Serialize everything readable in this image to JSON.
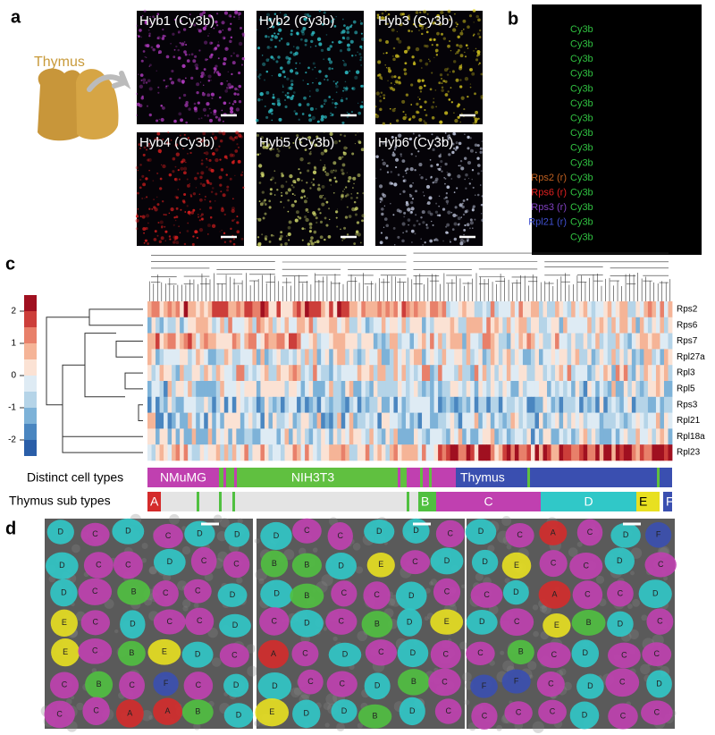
{
  "panel_labels": [
    "a",
    "b",
    "c",
    "d"
  ],
  "panel_a": {
    "organ": "Thymus",
    "images": [
      {
        "title": "Hyb1 (Cy3b)",
        "color": "#c040d0"
      },
      {
        "title": "Hyb2 (Cy3b)",
        "color": "#30c8d0"
      },
      {
        "title": "Hyb3 (Cy3b)",
        "color": "#e0d020"
      },
      {
        "title": "Hyb4 (Cy3b)",
        "color": "#e02020"
      },
      {
        "title": "Hyb5 (Cy3b)",
        "color": "#d8e070"
      },
      {
        "title": "Hyb6 (Cy3b)",
        "color": "#d0d8f0"
      }
    ]
  },
  "panel_b": {
    "channels": [
      "Cy3b",
      "Cy3b",
      "Cy3b",
      "Cy3b",
      "Cy3b",
      "Cy3b",
      "Cy3b",
      "Cy3b",
      "Cy3b",
      "Cy3b",
      "Cy3b",
      "Cy3b",
      "Cy3b",
      "Cy3b",
      "Cy3b"
    ],
    "channel_color": "#30c040",
    "probes": [
      {
        "label": "Rps2 (r)",
        "color": "#c06020"
      },
      {
        "label": "Rps6 (r)",
        "color": "#e02020"
      },
      {
        "label": "Rps3 (r)",
        "color": "#8040c0"
      },
      {
        "label": "Rpl21 (r)",
        "color": "#4050d0"
      }
    ]
  },
  "panel_c": {
    "colorbar_ticks": [
      2,
      1,
      0,
      -1,
      -2
    ],
    "genes": [
      "Rps2",
      "Rps6",
      "Rps7",
      "Rpl27a",
      "Rpl3",
      "Rpl5",
      "Rps3",
      "Rpl21",
      "Rpl18a",
      "Rpl23"
    ],
    "cell_type_track": {
      "label": "Distinct cell types",
      "segments": [
        {
          "label": "NMuMG",
          "color": "#c040b0"
        },
        {
          "label": "NIH3T3",
          "color": "#60c040"
        },
        {
          "label": "Thymus",
          "color": "#3a4fb0"
        }
      ]
    },
    "subtype_track": {
      "label": "Thymus sub types",
      "subtypes": [
        {
          "label": "A",
          "color": "#d42b2b"
        },
        {
          "label": "B",
          "color": "#50c040"
        },
        {
          "label": "C",
          "color": "#c040b0"
        },
        {
          "label": "D",
          "color": "#30c8c8"
        },
        {
          "label": "E",
          "color": "#e8e020"
        },
        {
          "label": "F",
          "color": "#3a4fb0"
        }
      ]
    }
  },
  "panel_d": {
    "images": [
      {
        "cells": [
          "D",
          "C",
          "D",
          "C",
          "D",
          "D",
          "D",
          "C",
          "C",
          "D",
          "C",
          "C",
          "D",
          "C",
          "B",
          "C",
          "C",
          "D",
          "E",
          "C",
          "D",
          "C",
          "C",
          "D",
          "E",
          "C",
          "B",
          "E",
          "D",
          "C",
          "C",
          "B",
          "C",
          "F",
          "C",
          "D",
          "C",
          "C",
          "A",
          "A",
          "B",
          "D"
        ]
      },
      {
        "cells": [
          "D",
          "C",
          "C",
          "D",
          "D",
          "C",
          "B",
          "B",
          "D",
          "E",
          "C",
          "D",
          "D",
          "B",
          "C",
          "C",
          "D",
          "C",
          "C",
          "D",
          "C",
          "B",
          "D",
          "E",
          "A",
          "C",
          "D",
          "C",
          "D",
          "C",
          "D",
          "C",
          "C",
          "D",
          "B",
          "C",
          "E",
          "D",
          "D",
          "B",
          "D",
          "C"
        ]
      },
      {
        "cells": [
          "D",
          "C",
          "A",
          "C",
          "D",
          "F",
          "D",
          "E",
          "C",
          "C",
          "D",
          "C",
          "C",
          "D",
          "A",
          "C",
          "C",
          "D",
          "D",
          "C",
          "E",
          "B",
          "D",
          "C",
          "C",
          "B",
          "C",
          "D",
          "C",
          "C",
          "F",
          "F",
          "C",
          "D",
          "C",
          "D",
          "C",
          "C",
          "C",
          "D",
          "C",
          "C"
        ]
      }
    ]
  }
}
